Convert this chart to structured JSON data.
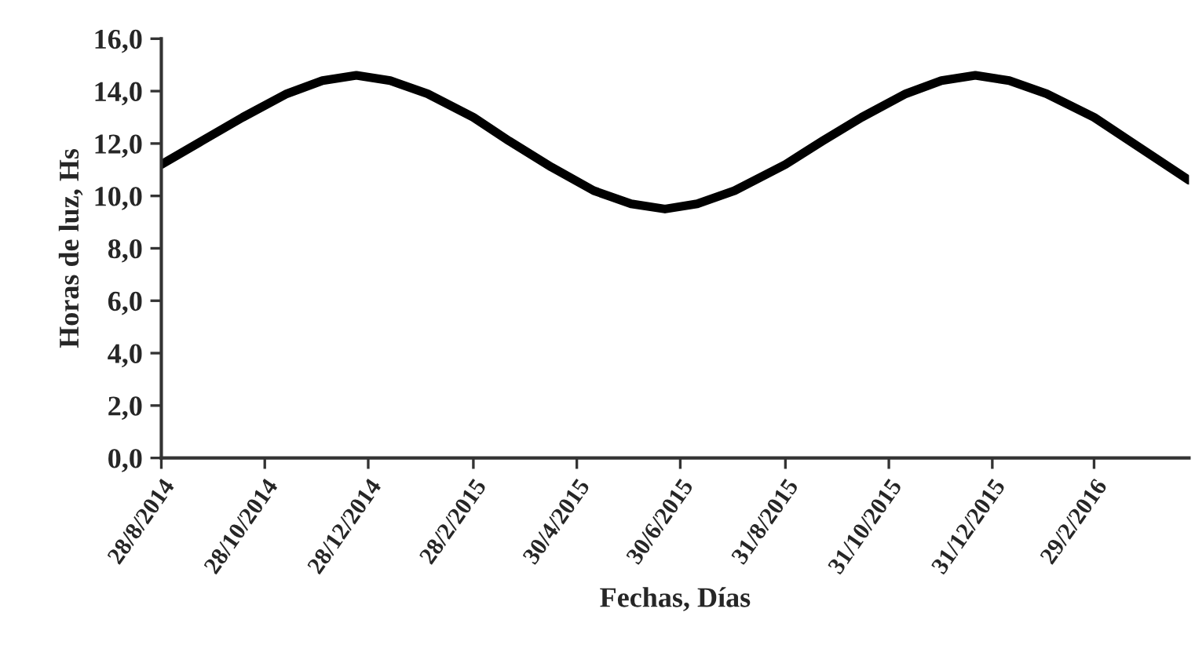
{
  "chart_data": {
    "type": "line",
    "xlabel": "Fechas, Días",
    "ylabel": "Horas de luz, Hs",
    "x": [
      "2014-08-28",
      "2014-09-21",
      "2014-10-15",
      "2014-11-10",
      "2014-12-01",
      "2014-12-21",
      "2015-01-10",
      "2015-02-01",
      "2015-02-28",
      "2015-03-21",
      "2015-04-15",
      "2015-05-10",
      "2015-06-01",
      "2015-06-21",
      "2015-07-10",
      "2015-08-01",
      "2015-08-31",
      "2015-09-22",
      "2015-10-15",
      "2015-11-10",
      "2015-12-01",
      "2015-12-21",
      "2016-01-10",
      "2016-02-01",
      "2016-02-29",
      "2016-03-21",
      "2016-04-25"
    ],
    "series": [
      {
        "color": "#000000",
        "values": [
          11.2,
          12.1,
          13.0,
          13.9,
          14.4,
          14.6,
          14.4,
          13.9,
          13.0,
          12.1,
          11.1,
          10.2,
          9.7,
          9.5,
          9.7,
          10.2,
          11.2,
          12.1,
          13.0,
          13.9,
          14.4,
          14.6,
          14.4,
          13.9,
          13.0,
          12.1,
          10.6
        ]
      }
    ],
    "xlim": [
      "2014-08-28",
      "2016-04-25"
    ],
    "xticks": [
      {
        "value": "2014-08-28",
        "label": "28/8/2014"
      },
      {
        "value": "2014-10-28",
        "label": "28/10/2014"
      },
      {
        "value": "2014-12-28",
        "label": "28/12/2014"
      },
      {
        "value": "2015-02-28",
        "label": "28/2/2015"
      },
      {
        "value": "2015-04-30",
        "label": "30/4/2015"
      },
      {
        "value": "2015-06-30",
        "label": "30/6/2015"
      },
      {
        "value": "2015-08-31",
        "label": "31/8/2015"
      },
      {
        "value": "2015-10-31",
        "label": "31/10/2015"
      },
      {
        "value": "2015-12-31",
        "label": "31/12/2015"
      },
      {
        "value": "2016-02-29",
        "label": "29/2/2016"
      }
    ],
    "ylim": [
      0,
      16
    ],
    "yticks": [
      {
        "value": 0,
        "label": "0,0"
      },
      {
        "value": 2,
        "label": "2,0"
      },
      {
        "value": 4,
        "label": "4,0"
      },
      {
        "value": 6,
        "label": "6,0"
      },
      {
        "value": 8,
        "label": "8,0"
      },
      {
        "value": 10,
        "label": "10,0"
      },
      {
        "value": 12,
        "label": "12,0"
      },
      {
        "value": 14,
        "label": "14,0"
      },
      {
        "value": 16,
        "label": "16,0"
      }
    ],
    "grid": false,
    "legend": false,
    "marker": "none",
    "line_style": "solid"
  }
}
